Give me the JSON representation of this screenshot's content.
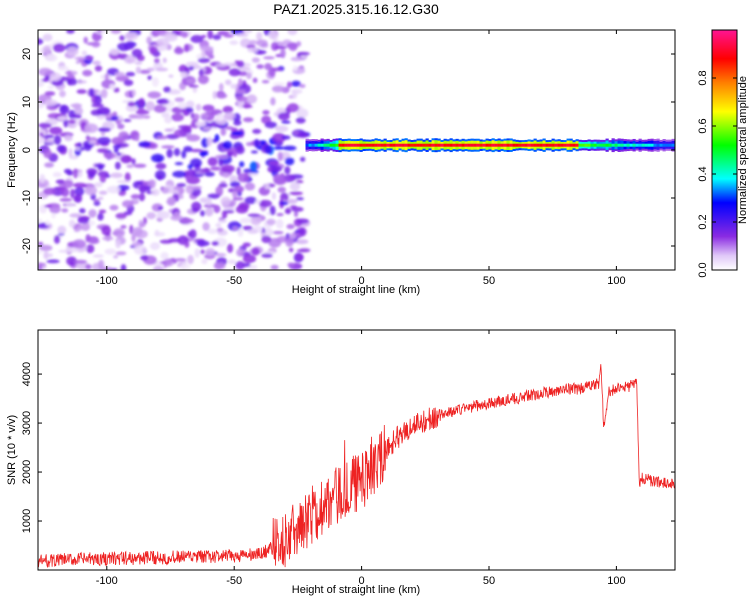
{
  "chart_data": [
    {
      "type": "heatmap",
      "title": "PAZ1.2025.315.16.12.G30",
      "xlabel": "Height of straight line (km)",
      "ylabel": "Frequency (Hz)",
      "xlim": [
        -127,
        123
      ],
      "ylim": [
        -25,
        25
      ],
      "xticks": [
        -100,
        -50,
        0,
        50,
        100
      ],
      "yticks": [
        -20,
        -10,
        0,
        10,
        20
      ],
      "xtick_labels": [
        "-100",
        "-50",
        "0",
        "50",
        "100"
      ],
      "ytick_labels": [
        "-20",
        "-10",
        "0",
        "10",
        "20"
      ],
      "colorbar": {
        "label": "Normalized spectral amplitude",
        "range": [
          0,
          1
        ],
        "ticks": [
          0.0,
          0.2,
          0.4,
          0.6,
          0.8
        ],
        "tick_labels": [
          "0.0",
          "0.2",
          "0.4",
          "0.6",
          "0.8"
        ],
        "colormap": [
          "#ffffff",
          "#c8a0f0",
          "#8a2be2",
          "#0000ff",
          "#00ffff",
          "#00ff00",
          "#ffff00",
          "#ff7f00",
          "#ff0000",
          "#ff1493"
        ]
      },
      "main_band": {
        "x_start_km": -22,
        "x_end_km": 123,
        "center_frequency_hz": 1,
        "peak_amplitude": 0.9,
        "peak_x_range_km": [
          -10,
          85
        ]
      },
      "noise_region_x_km": [
        -127,
        -22
      ]
    },
    {
      "type": "line",
      "xlabel": "Height of straight line (km)",
      "ylabel": "SNR (10 * v/v)",
      "xlim": [
        -127,
        123
      ],
      "ylim": [
        0,
        4900
      ],
      "xticks": [
        -100,
        -50,
        0,
        50,
        100
      ],
      "yticks": [
        1000,
        2000,
        3000,
        4000
      ],
      "xtick_labels": [
        "-100",
        "-50",
        "0",
        "50",
        "100"
      ],
      "ytick_labels": [
        "1000",
        "2000",
        "3000",
        "4000"
      ],
      "color": "#ee2222",
      "series": [
        {
          "name": "SNR",
          "x": [
            -127,
            -110,
            -90,
            -70,
            -50,
            -40,
            -30,
            -25,
            -20,
            -15,
            -10,
            -5,
            0,
            5,
            8,
            10,
            15,
            20,
            25,
            30,
            40,
            50,
            60,
            70,
            80,
            85,
            90,
            93,
            94,
            95,
            97,
            100,
            105,
            108,
            109,
            110,
            112,
            115,
            120,
            123
          ],
          "y": [
            180,
            220,
            240,
            260,
            280,
            320,
            600,
            900,
            1100,
            1300,
            1500,
            1700,
            1800,
            2100,
            2300,
            2500,
            2750,
            2950,
            3050,
            3150,
            3300,
            3400,
            3500,
            3600,
            3700,
            3700,
            3750,
            3800,
            4200,
            2900,
            3650,
            3700,
            3750,
            3800,
            1700,
            1900,
            1850,
            1800,
            1780,
            1760
          ]
        }
      ]
    }
  ]
}
